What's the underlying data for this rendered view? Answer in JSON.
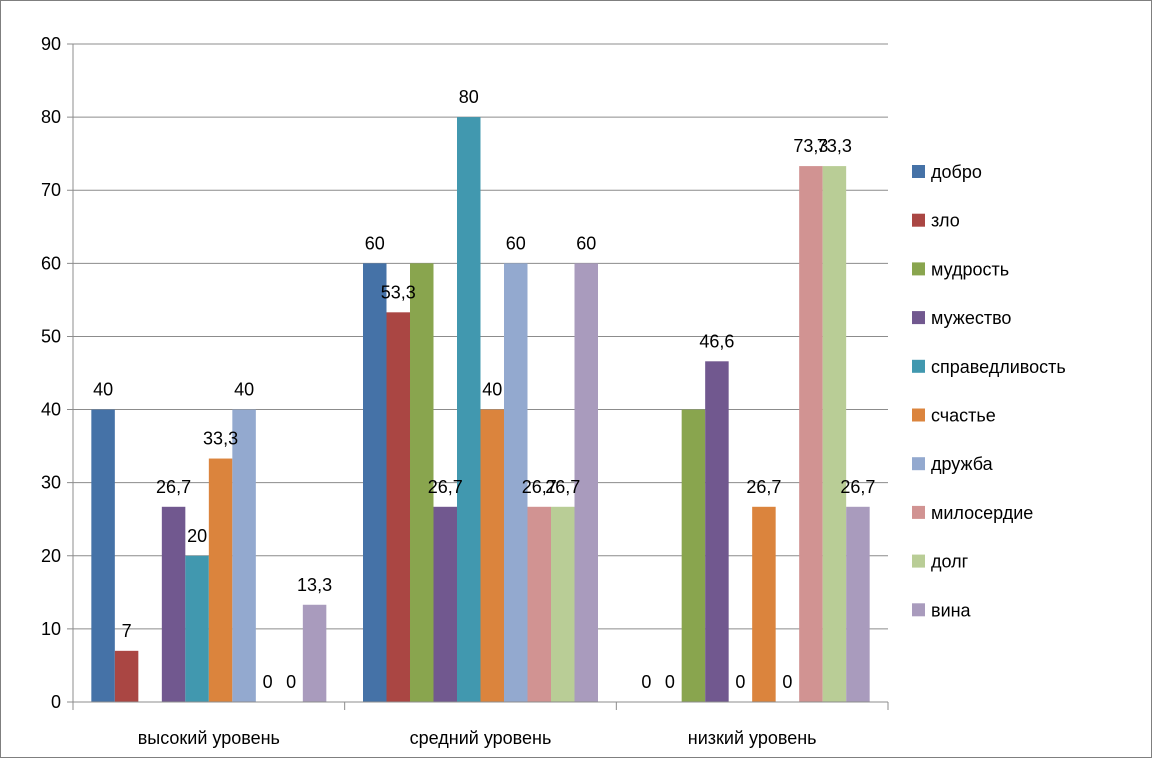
{
  "chart_data": {
    "type": "bar",
    "title": "",
    "xlabel": "",
    "ylabel": "",
    "ylim": [
      0,
      90
    ],
    "yticks": [
      0,
      10,
      20,
      30,
      40,
      50,
      60,
      70,
      80,
      90
    ],
    "grid": true,
    "legend_position": "right",
    "categories": [
      "высокий уровень",
      "средний уровень",
      "низкий уровень"
    ],
    "series": [
      {
        "name": "добро",
        "color": "#4572A7",
        "values": [
          40,
          60,
          0
        ],
        "labels": [
          "40",
          "60",
          "0"
        ]
      },
      {
        "name": "зло",
        "color": "#AA4643",
        "values": [
          7,
          53.3,
          0
        ],
        "labels": [
          "7",
          "53,3",
          "0"
        ]
      },
      {
        "name": "мудрость",
        "color": "#89A54E",
        "values": [
          0,
          60,
          40
        ],
        "labels": [
          "",
          "",
          ""
        ]
      },
      {
        "name": "мужество",
        "color": "#71588F",
        "values": [
          26.7,
          26.7,
          46.6
        ],
        "labels": [
          "26,7",
          "26,7",
          "46,6"
        ]
      },
      {
        "name": "справедливость",
        "color": "#4198AF",
        "values": [
          20,
          80,
          0
        ],
        "labels": [
          "20",
          "80",
          "0"
        ]
      },
      {
        "name": "счастье",
        "color": "#DB843D",
        "values": [
          33.3,
          40,
          26.7
        ],
        "labels": [
          "33,3",
          "40",
          "26,7"
        ]
      },
      {
        "name": "дружба",
        "color": "#93A9CF",
        "values": [
          40,
          60,
          0
        ],
        "labels": [
          "40",
          "60",
          "0"
        ]
      },
      {
        "name": "милосердие",
        "color": "#D19392",
        "values": [
          0,
          26.7,
          73.3
        ],
        "labels": [
          "0",
          "26,7",
          "73,3"
        ]
      },
      {
        "name": "долг",
        "color": "#B9CD96",
        "values": [
          0,
          26.7,
          73.3
        ],
        "labels": [
          "0",
          "26,7",
          "73,3"
        ]
      },
      {
        "name": "вина",
        "color": "#A99BBD",
        "values": [
          13.3,
          60,
          26.7
        ],
        "labels": [
          "13,3",
          "60",
          "26,7"
        ]
      }
    ]
  }
}
